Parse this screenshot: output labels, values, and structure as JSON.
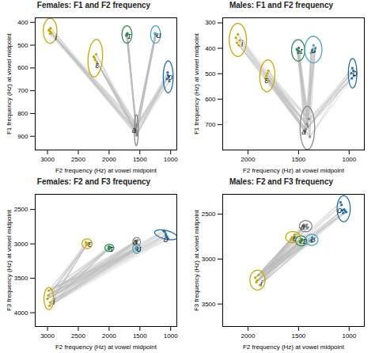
{
  "chart_data": [
    {
      "type": "scatter",
      "title": "Females: F1 and F2 frequency",
      "x_label": "F2 frequency (Hz) at vowel midpoint",
      "y_label": "F1 frequency (Hz) at vowel midpoint",
      "xlim": [
        3200,
        900
      ],
      "ylim": [
        960,
        380
      ],
      "xticks": [
        3000,
        2500,
        2000,
        1500,
        1000
      ],
      "yticks": [
        400,
        500,
        600,
        700,
        800,
        900
      ],
      "series": [
        {
          "name": "i",
          "color": "#C8A800",
          "x": [
            2950,
            2980,
            2940,
            2970,
            2960,
            2955
          ],
          "y": [
            425,
            435,
            445,
            432,
            450,
            440
          ],
          "label_at": [
            2860,
            468
          ],
          "ellipse": {
            "x": 2958,
            "y": 437,
            "x_radius": 110,
            "y_radius": 55,
            "angle": 0
          }
        },
        {
          "name": "ɪ",
          "color": "#2E8B57",
          "x": [
            1700,
            1715,
            1710,
            1720,
            1705
          ],
          "y": [
            448,
            455,
            450,
            458,
            453
          ],
          "label_at": [
            1672,
            462
          ],
          "ellipse": {
            "x": 1710,
            "y": 453,
            "x_radius": 80,
            "y_radius": 38,
            "angle": 0
          }
        },
        {
          "name": "ʊ",
          "color": "#4BA3C3",
          "x": [
            1250,
            1235,
            1248,
            1238,
            1255
          ],
          "y": [
            448,
            455,
            452,
            458,
            450
          ],
          "label_at": [
            1195,
            458
          ],
          "ellipse": {
            "x": 1245,
            "y": 453,
            "x_radius": 80,
            "y_radius": 38,
            "angle": 0
          }
        },
        {
          "name": "ɛ",
          "color": "#C8A800",
          "x": [
            2210,
            2240,
            2195,
            2225,
            2250
          ],
          "y": [
            540,
            555,
            575,
            565,
            550
          ],
          "label_at": [
            2195,
            590
          ],
          "ellipse": {
            "x": 2224,
            "y": 557,
            "x_radius": 120,
            "y_radius": 80,
            "angle": 12
          }
        },
        {
          "name": "o",
          "color": "#1E6DB0",
          "x": [
            1048,
            1030,
            1060,
            1042,
            1022
          ],
          "y": [
            620,
            638,
            648,
            632,
            658
          ],
          "label_at": [
            1005,
            642
          ],
          "ellipse": {
            "x": 1040,
            "y": 639,
            "x_radius": 80,
            "y_radius": 70,
            "angle": 0
          }
        },
        {
          "name": "a",
          "color": "#888888",
          "x": [
            1555,
            1562,
            1570,
            1558,
            1548,
            1552
          ],
          "y": [
            848,
            858,
            868,
            878,
            888,
            896
          ],
          "label_at": [
            1595,
            873
          ],
          "ellipse": {
            "x": 1558,
            "y": 873,
            "x_radius": 32,
            "y_radius": 68,
            "angle": 0
          }
        }
      ],
      "connections": [
        [
          "a",
          "i"
        ],
        [
          "a",
          "ɪ"
        ],
        [
          "a",
          "ʊ"
        ],
        [
          "a",
          "ɛ"
        ],
        [
          "a",
          "o"
        ]
      ],
      "connection_color": "#bbbbbb"
    },
    {
      "type": "scatter",
      "title": "Males: F1 and F2 frequency",
      "x_label": "F2 frequency (Hz) at vowel midpoint",
      "y_label": "F1 frequency (Hz) at vowel midpoint",
      "xlim": [
        2250,
        850
      ],
      "ylim": [
        800,
        280
      ],
      "xticks": [
        2000,
        1500,
        1000
      ],
      "yticks": [
        300,
        400,
        500,
        600,
        700
      ],
      "series": [
        {
          "name": "i",
          "color": "#C8A800",
          "x": [
            2100,
            2080,
            2110,
            2090,
            2120
          ],
          "y": [
            345,
            368,
            378,
            388,
            358
          ],
          "label_at": [
            2058,
            383
          ],
          "ellipse": {
            "x": 2100,
            "y": 367,
            "x_radius": 85,
            "y_radius": 65,
            "angle": 0
          }
        },
        {
          "name": "ɪ",
          "color": "#2E8B57",
          "x": [
            1498,
            1510,
            1492,
            1518,
            1504
          ],
          "y": [
            398,
            408,
            412,
            403,
            418
          ],
          "label_at": [
            1472,
            413
          ],
          "ellipse": {
            "x": 1504,
            "y": 408,
            "x_radius": 65,
            "y_radius": 42,
            "angle": 0
          }
        },
        {
          "name": "ʊ",
          "color": "#4BA3C3",
          "x": [
            1352,
            1332,
            1368,
            1342,
            1378
          ],
          "y": [
            388,
            398,
            408,
            413,
            418
          ],
          "label_at": [
            1352,
            410
          ],
          "ellipse": {
            "x": 1354,
            "y": 405,
            "x_radius": 85,
            "y_radius": 52,
            "angle": 0
          }
        },
        {
          "name": "ɛ",
          "color": "#C8A800",
          "x": [
            1798,
            1818,
            1808,
            1828,
            1793
          ],
          "y": [
            488,
            508,
            498,
            518,
            528
          ],
          "label_at": [
            1818,
            528
          ],
          "ellipse": {
            "x": 1809,
            "y": 508,
            "x_radius": 75,
            "y_radius": 62,
            "angle": 12
          }
        },
        {
          "name": "o",
          "color": "#1E6DB0",
          "x": [
            968,
            958,
            978,
            953,
            973
          ],
          "y": [
            478,
            488,
            498,
            508,
            518
          ],
          "label_at": [
            942,
            498
          ],
          "ellipse": {
            "x": 966,
            "y": 498,
            "x_radius": 42,
            "y_radius": 58,
            "angle": 0
          }
        },
        {
          "name": "a",
          "color": "#888888",
          "x": [
            1398,
            1418,
            1408,
            1428,
            1438,
            1388
          ],
          "y": [
            678,
            698,
            708,
            718,
            728,
            748
          ],
          "label_at": [
            1448,
            728
          ],
          "ellipse": {
            "x": 1413,
            "y": 713,
            "x_radius": 72,
            "y_radius": 85,
            "angle": 0
          }
        }
      ],
      "connections": [
        [
          "a",
          "i"
        ],
        [
          "a",
          "ɪ"
        ],
        [
          "a",
          "ʊ"
        ],
        [
          "a",
          "ɛ"
        ],
        [
          "a",
          "o"
        ]
      ],
      "connection_color": "#bbbbbb"
    },
    {
      "type": "scatter",
      "title": "Females: F2 and F3 frequency",
      "x_label": "F2 frequency (Hz) at vowel midpoint",
      "y_label": "F3 frequency (Hz) at vowel midpoint",
      "xlim": [
        3200,
        900
      ],
      "ylim": [
        4200,
        2280
      ],
      "xticks": [
        3000,
        2500,
        2000,
        1500,
        1000
      ],
      "yticks": [
        2500,
        3000,
        3500,
        4000
      ],
      "series": [
        {
          "name": "i",
          "color": "#C8A800",
          "x": [
            2980,
            3002,
            2958,
            2988,
            2968
          ],
          "y": [
            3680,
            3798,
            3852,
            3748,
            3900
          ],
          "label_at": [
            2895,
            3845
          ],
          "ellipse": {
            "x": 2979,
            "y": 3795,
            "x_radius": 78,
            "y_radius": 160,
            "angle": 0
          }
        },
        {
          "name": "ɪ",
          "color": "#2E8B57",
          "x": [
            1978,
            1998,
            1988,
            2008,
            2003
          ],
          "y": [
            3048,
            3078,
            3058,
            3068,
            3038
          ],
          "label_at": [
            1955,
            3073
          ],
          "ellipse": {
            "x": 1995,
            "y": 3058,
            "x_radius": 72,
            "y_radius": 52,
            "angle": 0
          }
        },
        {
          "name": "ʊ",
          "color": "#4BA3C3",
          "x": [
            1548,
            1558,
            1538,
            1568,
            1553
          ],
          "y": [
            3048,
            3068,
            3078,
            3058,
            3088
          ],
          "label_at": [
            1515,
            3073
          ],
          "ellipse": {
            "x": 1553,
            "y": 3068,
            "x_radius": 62,
            "y_radius": 68,
            "angle": 0
          }
        },
        {
          "name": "ɛ",
          "color": "#C8A800",
          "x": [
            2348,
            2368,
            2378,
            2358,
            2338
          ],
          "y": [
            2998,
            3018,
            2978,
            3008,
            2988
          ],
          "label_at": [
            2315,
            3008
          ],
          "ellipse": {
            "x": 2358,
            "y": 2998,
            "x_radius": 82,
            "y_radius": 70,
            "angle": 0
          }
        },
        {
          "name": "o",
          "color": "#1E6DB0",
          "x": [
            1095,
            1078,
            1058,
            1040,
            1115,
            1075
          ],
          "y": [
            2828,
            2860,
            2898,
            2928,
            2808,
            2878
          ],
          "label_at": [
            1080,
            2940
          ],
          "ellipse": {
            "x": 1078,
            "y": 2868,
            "x_radius": 62,
            "y_radius": 185,
            "angle": 78
          }
        },
        {
          "name": "a",
          "color": "#888888",
          "x": [
            1538,
            1558,
            1548,
            1568,
            1553
          ],
          "y": [
            2948,
            2978,
            2998,
            2958,
            2968
          ],
          "label_at": [
            1578,
            2978
          ],
          "ellipse": {
            "x": 1553,
            "y": 2970,
            "x_radius": 62,
            "y_radius": 62,
            "angle": 0
          }
        }
      ],
      "connections": [
        [
          "i",
          "ɪ"
        ],
        [
          "i",
          "ʊ"
        ],
        [
          "i",
          "ɛ"
        ],
        [
          "i",
          "o"
        ],
        [
          "i",
          "a"
        ]
      ],
      "connection_color": "#bbbbbb"
    },
    {
      "type": "scatter",
      "title": "Males: F2 and F3 frequency",
      "x_label": "F2 frequency (Hz) at vowel midpoint",
      "y_label": "F3 frequency (Hz) at vowel midpoint",
      "xlim": [
        2250,
        850
      ],
      "ylim": [
        3750,
        2280
      ],
      "xticks": [
        2000,
        1500,
        1000
      ],
      "yticks": [
        2500,
        3000,
        3500
      ],
      "series": [
        {
          "name": "i",
          "color": "#C8A800",
          "x": [
            1895,
            1908,
            1918,
            1882,
            1928
          ],
          "y": [
            3178,
            3238,
            3258,
            3288,
            3208
          ],
          "label_at": [
            1868,
            3273
          ],
          "ellipse": {
            "x": 1906,
            "y": 3234,
            "x_radius": 75,
            "y_radius": 110,
            "angle": 0
          }
        },
        {
          "name": "ɪ",
          "color": "#2E8B57",
          "x": [
            1465,
            1475,
            1470,
            1485,
            1480
          ],
          "y": [
            2788,
            2798,
            2778,
            2808,
            2818
          ],
          "label_at": [
            1445,
            2803
          ],
          "ellipse": {
            "x": 1475,
            "y": 2798,
            "x_radius": 55,
            "y_radius": 55,
            "angle": 0
          }
        },
        {
          "name": "ʊ",
          "color": "#4BA3C3",
          "x": [
            1365,
            1375,
            1355,
            1385,
            1370
          ],
          "y": [
            2758,
            2788,
            2778,
            2798,
            2808
          ],
          "label_at": [
            1355,
            2788
          ],
          "ellipse": {
            "x": 1370,
            "y": 2786,
            "x_radius": 62,
            "y_radius": 62,
            "angle": 0
          }
        },
        {
          "name": "ɛ",
          "color": "#C8A800",
          "x": [
            1545,
            1555,
            1565,
            1575,
            1540
          ],
          "y": [
            2748,
            2768,
            2758,
            2778,
            2728
          ],
          "label_at": [
            1540,
            2773
          ],
          "ellipse": {
            "x": 1556,
            "y": 2756,
            "x_radius": 72,
            "y_radius": 62,
            "angle": 0
          }
        },
        {
          "name": "o",
          "color": "#1E6DB0",
          "x": [
            1048,
            1038,
            1058,
            1028,
            1068,
            1075,
            1085
          ],
          "y": [
            2448,
            2468,
            2488,
            2478,
            2458,
            2398,
            2368
          ],
          "label_at": [
            1095,
            2455
          ],
          "ellipse": {
            "x": 1054,
            "y": 2440,
            "x_radius": 65,
            "y_radius": 145,
            "angle": 0
          }
        },
        {
          "name": "a",
          "color": "#888888",
          "x": [
            1418,
            1428,
            1438,
            1408,
            1448,
            1415,
            1455
          ],
          "y": [
            2618,
            2638,
            2628,
            2648,
            2618,
            2658,
            2638
          ],
          "label_at": [
            1460,
            2645
          ],
          "ellipse": {
            "x": 1430,
            "y": 2634,
            "x_radius": 62,
            "y_radius": 62,
            "angle": 0
          }
        }
      ],
      "connections": [
        [
          "i",
          "ɪ"
        ],
        [
          "i",
          "ʊ"
        ],
        [
          "i",
          "ɛ"
        ],
        [
          "i",
          "o"
        ],
        [
          "i",
          "a"
        ]
      ],
      "connection_color": "#bbbbbb"
    }
  ]
}
